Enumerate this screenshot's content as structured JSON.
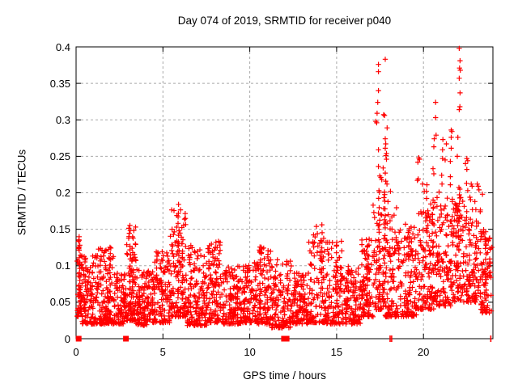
{
  "colors": {
    "marker": "#ff0000",
    "grid": "#a9a9a9",
    "axis": "#000000",
    "background": "#ffffff",
    "text": "#000000"
  },
  "chart_data": {
    "type": "scatter",
    "marker": "plus",
    "title": "Day 074 of 2019, SRMTID for receiver p040",
    "xlabel": "GPS time / hours",
    "ylabel": "SRMTID / TECUs",
    "xlim": [
      0,
      24
    ],
    "ylim": [
      0,
      0.4
    ],
    "grid": true,
    "x_ticks": [
      {
        "v": 0,
        "label": "0"
      },
      {
        "v": 5,
        "label": "5"
      },
      {
        "v": 10,
        "label": "10"
      },
      {
        "v": 15,
        "label": "15"
      },
      {
        "v": 20,
        "label": "20"
      }
    ],
    "y_ticks": [
      {
        "v": 0,
        "label": "0"
      },
      {
        "v": 0.05,
        "label": "0.05"
      },
      {
        "v": 0.1,
        "label": "0.1"
      },
      {
        "v": 0.15,
        "label": "0.15"
      },
      {
        "v": 0.2,
        "label": "0.2"
      },
      {
        "v": 0.25,
        "label": "0.25"
      },
      {
        "v": 0.3,
        "label": "0.3"
      },
      {
        "v": 0.35,
        "label": "0.35"
      },
      {
        "v": 0.4,
        "label": "0.4"
      }
    ],
    "seed": 20190074,
    "baseline_segments": [
      [
        0.05,
        0.35,
        55,
        0.03,
        0.06,
        0.14
      ],
      [
        0.35,
        1.2,
        115,
        0.02,
        0.052,
        0.115
      ],
      [
        1.2,
        2.2,
        140,
        0.02,
        0.05,
        0.125
      ],
      [
        2.2,
        2.85,
        85,
        0.02,
        0.045,
        0.09
      ],
      [
        2.85,
        3.45,
        90,
        0.025,
        0.058,
        0.155
      ],
      [
        3.45,
        4.4,
        125,
        0.018,
        0.045,
        0.095
      ],
      [
        4.4,
        5.4,
        130,
        0.022,
        0.05,
        0.12
      ],
      [
        5.4,
        6.4,
        120,
        0.03,
        0.065,
        0.185
      ],
      [
        6.4,
        7.6,
        145,
        0.018,
        0.048,
        0.125
      ],
      [
        7.6,
        8.4,
        100,
        0.022,
        0.055,
        0.135
      ],
      [
        8.4,
        9.6,
        140,
        0.02,
        0.045,
        0.1
      ],
      [
        9.6,
        10.4,
        100,
        0.022,
        0.05,
        0.105
      ],
      [
        10.4,
        11.2,
        100,
        0.02,
        0.048,
        0.126
      ],
      [
        11.2,
        12.4,
        135,
        0.015,
        0.04,
        0.11
      ],
      [
        12.4,
        13.4,
        120,
        0.02,
        0.045,
        0.09
      ],
      [
        13.4,
        14.4,
        115,
        0.022,
        0.052,
        0.155
      ],
      [
        14.4,
        15.4,
        110,
        0.02,
        0.05,
        0.135
      ],
      [
        15.4,
        16.4,
        110,
        0.02,
        0.05,
        0.1
      ],
      [
        16.4,
        17.1,
        90,
        0.03,
        0.06,
        0.15
      ],
      [
        17.1,
        17.8,
        80,
        0.04,
        0.08,
        0.195
      ],
      [
        17.8,
        18.5,
        95,
        0.03,
        0.07,
        0.19
      ],
      [
        18.5,
        19.6,
        135,
        0.03,
        0.07,
        0.16
      ],
      [
        19.6,
        20.6,
        125,
        0.04,
        0.085,
        0.195
      ],
      [
        20.6,
        21.6,
        120,
        0.045,
        0.095,
        0.195
      ],
      [
        21.6,
        22.3,
        95,
        0.05,
        0.105,
        0.195
      ],
      [
        22.3,
        23.3,
        115,
        0.05,
        0.105,
        0.195
      ],
      [
        23.3,
        23.95,
        80,
        0.035,
        0.08,
        0.15
      ]
    ],
    "columns": [
      [
        0.2,
        0.05,
        0.14,
        12
      ],
      [
        1.95,
        0.055,
        0.125,
        9
      ],
      [
        3.08,
        0.05,
        0.155,
        13
      ],
      [
        3.25,
        0.05,
        0.138,
        9
      ],
      [
        5.9,
        0.06,
        0.183,
        15
      ],
      [
        6.1,
        0.055,
        0.15,
        10
      ],
      [
        6.6,
        0.05,
        0.125,
        8
      ],
      [
        8.05,
        0.05,
        0.133,
        9
      ],
      [
        10.6,
        0.05,
        0.126,
        9
      ],
      [
        14.15,
        0.05,
        0.155,
        12
      ],
      [
        15.0,
        0.05,
        0.135,
        10
      ],
      [
        16.75,
        0.05,
        0.128,
        8
      ],
      [
        17.45,
        0.08,
        0.2,
        14
      ],
      [
        17.8,
        0.09,
        0.2,
        10
      ],
      [
        20.15,
        0.1,
        0.205,
        8
      ],
      [
        22.05,
        0.12,
        0.205,
        10
      ],
      [
        23.55,
        0.06,
        0.148,
        8
      ]
    ],
    "outliers": [
      [
        17.8,
        0.383
      ],
      [
        17.41,
        0.376
      ],
      [
        17.41,
        0.366
      ],
      [
        17.41,
        0.34
      ],
      [
        17.37,
        0.324
      ],
      [
        17.33,
        0.309
      ],
      [
        17.71,
        0.307
      ],
      [
        17.76,
        0.306
      ],
      [
        17.26,
        0.298
      ],
      [
        17.31,
        0.296
      ],
      [
        17.91,
        0.289
      ],
      [
        17.8,
        0.274
      ],
      [
        17.83,
        0.267
      ],
      [
        17.8,
        0.261
      ],
      [
        17.41,
        0.259
      ],
      [
        17.87,
        0.254
      ],
      [
        17.84,
        0.251
      ],
      [
        17.87,
        0.246
      ],
      [
        17.41,
        0.236
      ],
      [
        17.68,
        0.234
      ],
      [
        17.8,
        0.227
      ],
      [
        17.48,
        0.223
      ],
      [
        17.55,
        0.221
      ],
      [
        17.6,
        0.218
      ],
      [
        17.83,
        0.216
      ],
      [
        17.9,
        0.212
      ],
      [
        17.44,
        0.203
      ],
      [
        17.76,
        0.201
      ],
      [
        18.1,
        0.202
      ],
      [
        22.06,
        0.398
      ],
      [
        22.11,
        0.381
      ],
      [
        22.08,
        0.371
      ],
      [
        22.12,
        0.368
      ],
      [
        22.06,
        0.357
      ],
      [
        22.11,
        0.337
      ],
      [
        20.7,
        0.324
      ],
      [
        22.1,
        0.318
      ],
      [
        22.06,
        0.314
      ],
      [
        20.7,
        0.303
      ],
      [
        21.6,
        0.286
      ],
      [
        21.64,
        0.284
      ],
      [
        20.73,
        0.279
      ],
      [
        21.6,
        0.276
      ],
      [
        21.98,
        0.276
      ],
      [
        20.62,
        0.274
      ],
      [
        21.12,
        0.273
      ],
      [
        21.32,
        0.267
      ],
      [
        20.6,
        0.263
      ],
      [
        21.6,
        0.261
      ],
      [
        21.1,
        0.259
      ],
      [
        21.95,
        0.25
      ],
      [
        19.73,
        0.248
      ],
      [
        21.1,
        0.247
      ],
      [
        19.78,
        0.246
      ],
      [
        22.5,
        0.247
      ],
      [
        21.25,
        0.245
      ],
      [
        22.55,
        0.244
      ],
      [
        19.68,
        0.242
      ],
      [
        22.42,
        0.24
      ],
      [
        21.55,
        0.243
      ],
      [
        20.55,
        0.233
      ],
      [
        22.5,
        0.232
      ],
      [
        20.6,
        0.226
      ],
      [
        21.05,
        0.224
      ],
      [
        21.55,
        0.222
      ],
      [
        19.7,
        0.219
      ],
      [
        19.65,
        0.217
      ],
      [
        19.95,
        0.212
      ],
      [
        20.2,
        0.211
      ],
      [
        21.07,
        0.212
      ],
      [
        21.55,
        0.211
      ],
      [
        22.48,
        0.213
      ],
      [
        22.75,
        0.212
      ],
      [
        22.8,
        0.209
      ],
      [
        23.1,
        0.212
      ],
      [
        23.15,
        0.209
      ],
      [
        22.1,
        0.205
      ],
      [
        22.55,
        0.203
      ],
      [
        23.2,
        0.204
      ],
      [
        20.05,
        0.202
      ],
      [
        20.9,
        0.201
      ],
      [
        23.4,
        0.198
      ]
    ],
    "zero_markers": {
      "squares": [
        0.15,
        2.87,
        11.97,
        12.12
      ],
      "thin": [
        18.08,
        18.17,
        23.88
      ]
    }
  }
}
